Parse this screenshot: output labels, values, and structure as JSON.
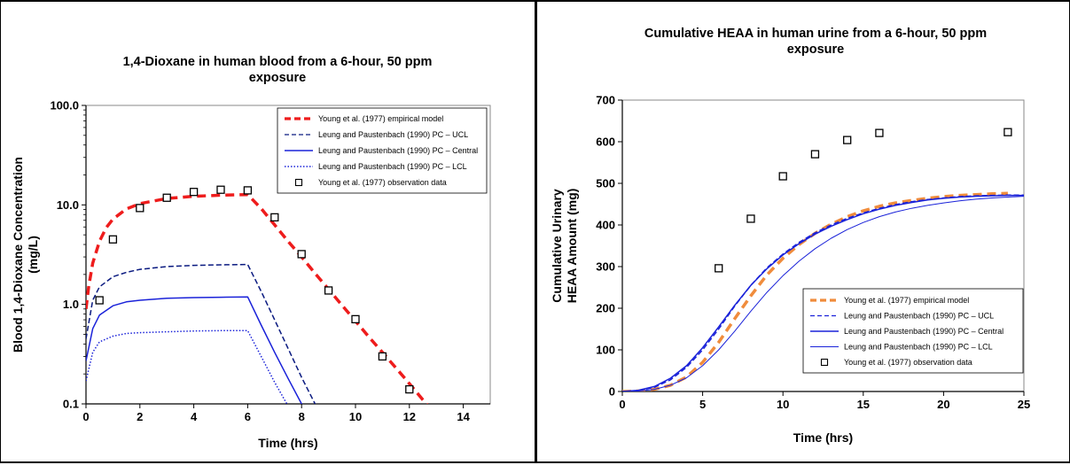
{
  "chart_data": [
    {
      "type": "line",
      "title": "1,4-Dioxane in human blood from a 6-hour, 50 ppm exposure",
      "title_lines": [
        "1,4-Dioxane in human blood from a 6-hour, 50 ppm",
        "exposure"
      ],
      "xlabel": "Time (hrs)",
      "ylabel": "Blood 1,4-Dioxane Concentration (mg/L)",
      "ylabel_lines": [
        "Blood 1,4-Dioxane Concentration",
        "(mg/L)"
      ],
      "xlim": [
        0,
        15
      ],
      "ylim": [
        0.1,
        100
      ],
      "yscale": "log",
      "xticks": [
        0,
        2,
        4,
        6,
        8,
        10,
        12,
        14
      ],
      "yticks": [
        0.1,
        1.0,
        10.0,
        100.0
      ],
      "ytick_labels": [
        "0.1",
        "1.0",
        "10.0",
        "100.0"
      ],
      "grid": false,
      "legend_position": "top-right",
      "series": [
        {
          "name": "Young et al. (1977) empirical model",
          "style": "dashed-thick",
          "color": "#ee1c1c",
          "x": [
            0,
            0.1,
            0.25,
            0.5,
            0.75,
            1,
            1.5,
            2,
            3,
            4,
            5,
            6,
            6.5,
            7,
            7.5,
            8,
            8.5,
            9,
            9.5,
            10,
            10.5,
            11,
            11.5,
            12,
            12.5,
            12.7
          ],
          "y": [
            0.9,
            1.5,
            2.6,
            4.3,
            5.9,
            7.2,
            9.1,
            10.3,
            11.6,
            12.2,
            12.5,
            12.7,
            9.2,
            6.3,
            4.3,
            3.0,
            2.05,
            1.42,
            0.98,
            0.68,
            0.47,
            0.33,
            0.23,
            0.16,
            0.11,
            0.095
          ]
        },
        {
          "name": "Leung and Paustenbach (1990) PC – UCL",
          "style": "dashed",
          "color": "#0a1a80",
          "x": [
            0,
            0.25,
            0.5,
            1,
            1.5,
            2,
            3,
            4,
            5,
            6,
            6.5,
            7,
            7.5,
            8,
            8.5,
            8.7
          ],
          "y": [
            0.45,
            1.1,
            1.5,
            1.9,
            2.1,
            2.25,
            2.4,
            2.47,
            2.5,
            2.52,
            1.35,
            0.7,
            0.36,
            0.185,
            0.1,
            0.085
          ]
        },
        {
          "name": "Leung and Paustenbach (1990) PC – Central",
          "style": "solid",
          "color": "#1a22d9",
          "x": [
            0,
            0.25,
            0.5,
            1,
            1.5,
            2,
            3,
            4,
            5,
            6,
            6.5,
            7,
            7.5,
            8,
            8.3
          ],
          "y": [
            0.27,
            0.57,
            0.78,
            0.97,
            1.06,
            1.1,
            1.15,
            1.17,
            1.18,
            1.19,
            0.62,
            0.33,
            0.18,
            0.1,
            0.075
          ]
        },
        {
          "name": "Leung and Paustenbach (1990) PC – LCL",
          "style": "dotted",
          "color": "#1a22d9",
          "x": [
            0,
            0.25,
            0.5,
            1,
            1.5,
            2,
            3,
            4,
            5,
            6,
            6.5,
            7,
            7.5,
            7.7
          ],
          "y": [
            0.17,
            0.33,
            0.42,
            0.48,
            0.51,
            0.52,
            0.53,
            0.54,
            0.545,
            0.545,
            0.3,
            0.165,
            0.095,
            0.08
          ]
        },
        {
          "name": "Young et al. (1977) observation data",
          "style": "marker-square",
          "color": "#000000",
          "x": [
            0.5,
            1,
            2,
            3,
            4,
            5,
            6,
            7,
            8,
            9,
            10,
            11,
            12
          ],
          "y": [
            1.1,
            4.5,
            9.3,
            11.8,
            13.5,
            14.2,
            14.0,
            7.5,
            3.2,
            1.38,
            0.71,
            0.3,
            0.14
          ]
        }
      ]
    },
    {
      "type": "line",
      "title": "Cumulative HEAA in human urine from a 6-hour, 50 ppm exposure",
      "title_lines": [
        "Cumulative HEAA in human urine from a 6-hour, 50 ppm",
        "exposure"
      ],
      "xlabel": "Time (hrs)",
      "ylabel": "Cumulative Urinary HEAA Amount (mg)",
      "ylabel_lines": [
        "Cumulative Urinary",
        "HEAA Amount (mg)"
      ],
      "xlim": [
        0,
        25
      ],
      "ylim": [
        0,
        700
      ],
      "yscale": "linear",
      "xticks": [
        0,
        5,
        10,
        15,
        20,
        25
      ],
      "yticks": [
        0,
        100,
        200,
        300,
        400,
        500,
        600,
        700
      ],
      "grid": false,
      "legend_position": "bottom-right",
      "series": [
        {
          "name": "Young et al. (1977) empirical model",
          "style": "dashed-thick",
          "color": "#f08c3c",
          "x": [
            0,
            1,
            2,
            3,
            4,
            5,
            6,
            7,
            8,
            9,
            10,
            11,
            12,
            13,
            14,
            15,
            16,
            17,
            18,
            19,
            20,
            21,
            22,
            23,
            24
          ],
          "y": [
            0,
            1,
            5,
            15,
            35,
            70,
            118,
            175,
            230,
            280,
            320,
            353,
            380,
            402,
            420,
            434,
            445,
            453,
            459,
            464,
            468,
            471,
            473,
            475,
            476
          ]
        },
        {
          "name": "Leung and Paustenbach (1990) PC – UCL",
          "style": "dashed",
          "color": "#1a22d9",
          "x": [
            0,
            1,
            2,
            3,
            4,
            5,
            6,
            7,
            8,
            9,
            10,
            11,
            12,
            13,
            14,
            15,
            16,
            17,
            18,
            19,
            20,
            21,
            22,
            23,
            24,
            25
          ],
          "y": [
            0,
            2,
            10,
            28,
            58,
            100,
            150,
            205,
            255,
            297,
            330,
            358,
            381,
            400,
            416,
            429,
            440,
            449,
            456,
            461,
            465,
            468,
            470,
            471,
            472,
            472
          ]
        },
        {
          "name": "Leung and Paustenbach (1990) PC – Central",
          "style": "solid",
          "color": "#1a22d9",
          "x": [
            0,
            1,
            2,
            3,
            4,
            5,
            6,
            7,
            8,
            9,
            10,
            11,
            12,
            13,
            14,
            15,
            16,
            17,
            18,
            19,
            20,
            21,
            22,
            23,
            24,
            25
          ],
          "y": [
            0,
            3,
            12,
            32,
            62,
            105,
            155,
            207,
            255,
            295,
            328,
            355,
            378,
            397,
            413,
            427,
            438,
            447,
            454,
            460,
            464,
            467,
            469,
            470,
            471,
            471
          ]
        },
        {
          "name": "Leung and Paustenbach (1990) PC – LCL",
          "style": "solid-thin",
          "color": "#1a22d9",
          "x": [
            0,
            1,
            2,
            3,
            4,
            5,
            6,
            7,
            8,
            9,
            10,
            11,
            12,
            13,
            14,
            15,
            16,
            17,
            18,
            19,
            20,
            21,
            22,
            23,
            24,
            25
          ],
          "y": [
            0,
            1,
            5,
            15,
            33,
            62,
            100,
            145,
            193,
            238,
            278,
            313,
            343,
            368,
            389,
            406,
            420,
            431,
            440,
            447,
            453,
            458,
            462,
            465,
            467,
            469
          ]
        },
        {
          "name": "Young et al. (1977) observation data",
          "style": "marker-square",
          "color": "#000000",
          "x": [
            6,
            8,
            10,
            12,
            14,
            16,
            24
          ],
          "y": [
            296,
            415,
            517,
            570,
            604,
            621,
            623
          ]
        }
      ]
    }
  ]
}
